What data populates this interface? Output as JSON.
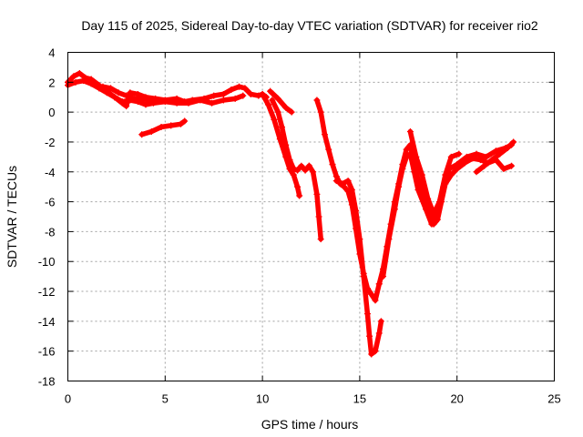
{
  "chart_data": {
    "type": "scatter",
    "title": "Day 115 of 2025, Sidereal Day-to-day VTEC variation (SDTVAR) for receiver rio2",
    "xlabel": "GPS time / hours",
    "ylabel": "SDTVAR / TECUs",
    "xlim": [
      0,
      25
    ],
    "ylim": [
      -18,
      4
    ],
    "xticks": [
      0,
      5,
      10,
      15,
      20,
      25
    ],
    "yticks": [
      4,
      2,
      0,
      -2,
      -4,
      -6,
      -8,
      -10,
      -12,
      -14,
      -16,
      -18
    ],
    "grid": true,
    "marker": "+",
    "color": "#ff0000",
    "series": [
      {
        "segments": [
          [
            [
              0,
              2
            ],
            [
              0.3,
              2.4
            ],
            [
              0.6,
              2.6
            ],
            [
              0.9,
              2.3
            ],
            [
              1.2,
              2.2
            ],
            [
              1.6,
              1.8
            ],
            [
              2,
              1.4
            ],
            [
              2.4,
              1
            ],
            [
              2.8,
              0.6
            ],
            [
              3.0,
              0.4
            ],
            [
              3.2,
              1.3
            ],
            [
              3.6,
              1.2
            ],
            [
              4,
              1
            ],
            [
              4.5,
              0.9
            ],
            [
              5,
              0.8
            ],
            [
              5.6,
              0.9
            ],
            [
              6,
              0.7
            ],
            [
              6.4,
              0.8
            ],
            [
              7,
              0.9
            ],
            [
              7.5,
              1.1
            ],
            [
              8,
              1.2
            ],
            [
              8.4,
              1.5
            ],
            [
              8.8,
              1.7
            ],
            [
              9.1,
              1.6
            ],
            [
              9.4,
              1.2
            ],
            [
              9.8,
              1.1
            ],
            [
              10,
              1.2
            ],
            [
              10.2,
              1
            ]
          ],
          [
            [
              0,
              1.8
            ],
            [
              0.4,
              2
            ],
            [
              0.8,
              2.1
            ],
            [
              1.2,
              1.9
            ],
            [
              1.6,
              1.6
            ],
            [
              2,
              1.3
            ],
            [
              2.4,
              1.0
            ],
            [
              2.8,
              0.7
            ],
            [
              3.2,
              0.8
            ],
            [
              3.6,
              0.7
            ],
            [
              4,
              0.5
            ],
            [
              4.4,
              0.6
            ],
            [
              5,
              0.7
            ],
            [
              5.6,
              0.6
            ],
            [
              6.2,
              0.6
            ],
            [
              6.8,
              0.8
            ],
            [
              7.4,
              0.6
            ],
            [
              8,
              0.8
            ],
            [
              8.6,
              0.9
            ],
            [
              9,
              1.1
            ]
          ],
          [
            [
              1.8,
              1.7
            ],
            [
              2.2,
              1.6
            ],
            [
              2.6,
              1.3
            ],
            [
              3,
              1.1
            ],
            [
              3.4,
              0.9
            ],
            [
              3.8,
              0.9
            ],
            [
              4.2,
              0.8
            ],
            [
              4.6,
              0.7
            ]
          ],
          [
            [
              3.8,
              -1.5
            ],
            [
              4.3,
              -1.3
            ],
            [
              4.8,
              -1
            ],
            [
              5.3,
              -0.9
            ],
            [
              5.8,
              -0.8
            ],
            [
              6,
              -0.6
            ]
          ],
          [
            [
              10,
              1.2
            ],
            [
              10.3,
              0.5
            ],
            [
              10.6,
              -0.5
            ],
            [
              10.9,
              -1.8
            ],
            [
              11.2,
              -3
            ],
            [
              11.4,
              -3.8
            ],
            [
              11.6,
              -4.2
            ],
            [
              11.8,
              -5
            ],
            [
              11.9,
              -5.6
            ]
          ],
          [
            [
              10.5,
              0.8
            ],
            [
              10.8,
              0
            ],
            [
              11,
              -1
            ],
            [
              11.2,
              -2.2
            ],
            [
              11.4,
              -3.2
            ],
            [
              11.6,
              -3.8
            ],
            [
              11.8,
              -3.9
            ],
            [
              12.0,
              -3.6
            ],
            [
              12.2,
              -3.9
            ],
            [
              12.4,
              -3.6
            ]
          ],
          [
            [
              10.4,
              1.4
            ],
            [
              10.8,
              0.9
            ],
            [
              11.2,
              0.3
            ],
            [
              11.5,
              0.0
            ]
          ],
          [
            [
              12.4,
              -3.6
            ],
            [
              12.6,
              -4
            ],
            [
              12.8,
              -5.5
            ],
            [
              12.9,
              -7
            ],
            [
              13,
              -8.5
            ]
          ],
          [
            [
              12.8,
              0.8
            ],
            [
              13,
              0
            ],
            [
              13.2,
              -1.5
            ],
            [
              13.4,
              -2.5
            ],
            [
              13.6,
              -3.5
            ],
            [
              13.8,
              -4.3
            ],
            [
              14,
              -4.8
            ],
            [
              14.2,
              -5
            ],
            [
              14.4,
              -5.3
            ],
            [
              14.6,
              -6.2
            ],
            [
              14.8,
              -7.8
            ],
            [
              15,
              -9.5
            ],
            [
              15.2,
              -10.8
            ],
            [
              15.4,
              -11.8
            ],
            [
              15.6,
              -12.2
            ],
            [
              15.8,
              -12.6
            ],
            [
              16,
              -11.5
            ]
          ],
          [
            [
              13.8,
              -4.6
            ],
            [
              14.1,
              -4.8
            ],
            [
              14.4,
              -4.6
            ],
            [
              14.6,
              -5.2
            ],
            [
              14.8,
              -6.6
            ],
            [
              15,
              -8.5
            ],
            [
              15.2,
              -11
            ],
            [
              15.4,
              -13.5
            ],
            [
              15.5,
              -15
            ],
            [
              15.6,
              -16.2
            ],
            [
              15.8,
              -16
            ],
            [
              16,
              -14.8
            ],
            [
              16.1,
              -14
            ]
          ],
          [
            [
              16,
              -11.5
            ],
            [
              16.2,
              -10.5
            ],
            [
              16.4,
              -9
            ],
            [
              16.6,
              -7.5
            ],
            [
              16.8,
              -6
            ],
            [
              17,
              -4.8
            ],
            [
              17.2,
              -3.5
            ],
            [
              17.4,
              -2.5
            ],
            [
              17.6,
              -2.2
            ],
            [
              17.8,
              -3.5
            ],
            [
              18,
              -4.5
            ],
            [
              18.3,
              -5.5
            ],
            [
              18.6,
              -6.5
            ],
            [
              18.8,
              -7.5
            ],
            [
              19,
              -7.2
            ],
            [
              19.2,
              -6
            ],
            [
              19.4,
              -4.8
            ],
            [
              19.7,
              -4.2
            ],
            [
              20,
              -3.8
            ],
            [
              20.4,
              -3.4
            ],
            [
              20.8,
              -3.1
            ],
            [
              21.2,
              -3.2
            ],
            [
              21.6,
              -3.4
            ],
            [
              22,
              -3.2
            ],
            [
              22.4,
              -3.8
            ],
            [
              22.8,
              -3.6
            ]
          ],
          [
            [
              16.2,
              -11
            ],
            [
              16.5,
              -8.5
            ],
            [
              16.8,
              -6.5
            ],
            [
              17,
              -5
            ],
            [
              17.2,
              -3.8
            ],
            [
              17.4,
              -3
            ],
            [
              17.6,
              -2.8
            ],
            [
              17.8,
              -4
            ],
            [
              18,
              -5.2
            ],
            [
              18.4,
              -6.5
            ],
            [
              18.7,
              -7.5
            ],
            [
              19,
              -6.5
            ],
            [
              19.3,
              -5
            ],
            [
              19.6,
              -3.8
            ],
            [
              20,
              -3.5
            ],
            [
              20.5,
              -3
            ],
            [
              21,
              -2.8
            ],
            [
              21.5,
              -3
            ],
            [
              22,
              -2.6
            ],
            [
              22.5,
              -2.4
            ],
            [
              22.8,
              -2.2
            ]
          ],
          [
            [
              17.6,
              -1.3
            ],
            [
              17.9,
              -3.0
            ],
            [
              18.2,
              -4.2
            ],
            [
              18.5,
              -5.8
            ],
            [
              18.8,
              -6.8
            ],
            [
              19.1,
              -6.0
            ],
            [
              19.4,
              -4.2
            ],
            [
              19.7,
              -3.0
            ],
            [
              20.1,
              -2.8
            ]
          ],
          [
            [
              21,
              -4
            ],
            [
              21.4,
              -3.6
            ],
            [
              21.8,
              -3.2
            ],
            [
              22.2,
              -2.8
            ],
            [
              22.6,
              -2.4
            ],
            [
              22.9,
              -2
            ]
          ]
        ]
      }
    ]
  }
}
